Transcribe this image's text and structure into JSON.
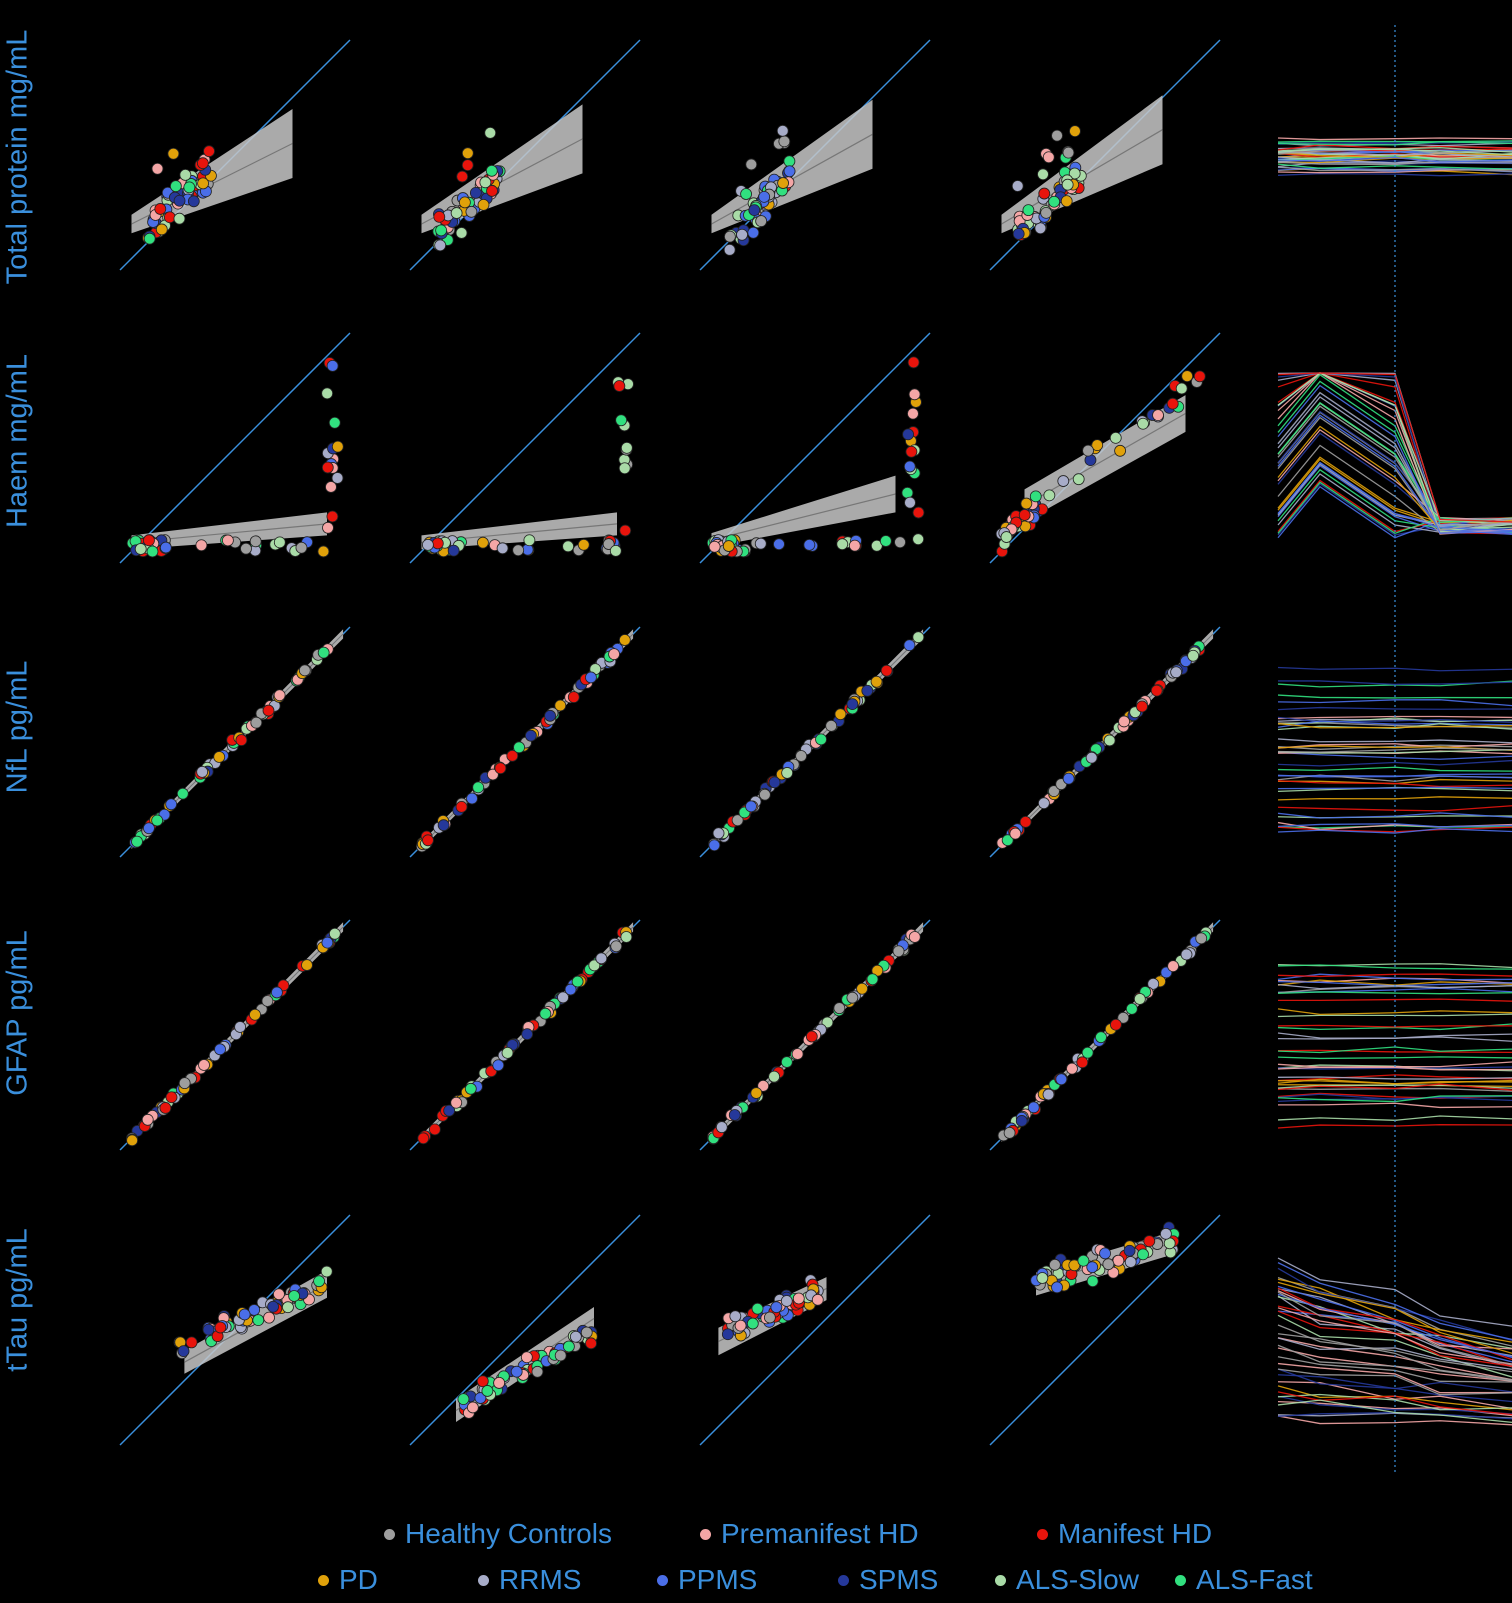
{
  "chart_data": {
    "type": "scatter",
    "rows": [
      {
        "ylabel": "Total protein mg/mL"
      },
      {
        "ylabel": "Haem mg/mL"
      },
      {
        "ylabel": "NfL pg/mL"
      },
      {
        "ylabel": "GFAP pg/mL"
      },
      {
        "ylabel": "tTau pg/mL"
      }
    ],
    "columns": 4,
    "identity_line": true,
    "regression_band": true,
    "trajectory_panel": true,
    "grid": false,
    "legend_position": "bottom",
    "legend": [
      {
        "label": "Healthy Controls",
        "color": "#9e9e9e"
      },
      {
        "label": "Premanifest HD",
        "color": "#f4a6a6"
      },
      {
        "label": "Manifest HD",
        "color": "#e8140c"
      },
      {
        "label": "PD",
        "color": "#e0a10a"
      },
      {
        "label": "RRMS",
        "color": "#a7acc8"
      },
      {
        "label": "PPMS",
        "color": "#4a6ee8"
      },
      {
        "label": "SPMS",
        "color": "#25389a"
      },
      {
        "label": "ALS-Slow",
        "color": "#a9dba7"
      },
      {
        "label": "ALS-Fast",
        "color": "#31e07f"
      }
    ],
    "accent_color": "#3a8fdc",
    "band_color": "#c8c8c8"
  }
}
